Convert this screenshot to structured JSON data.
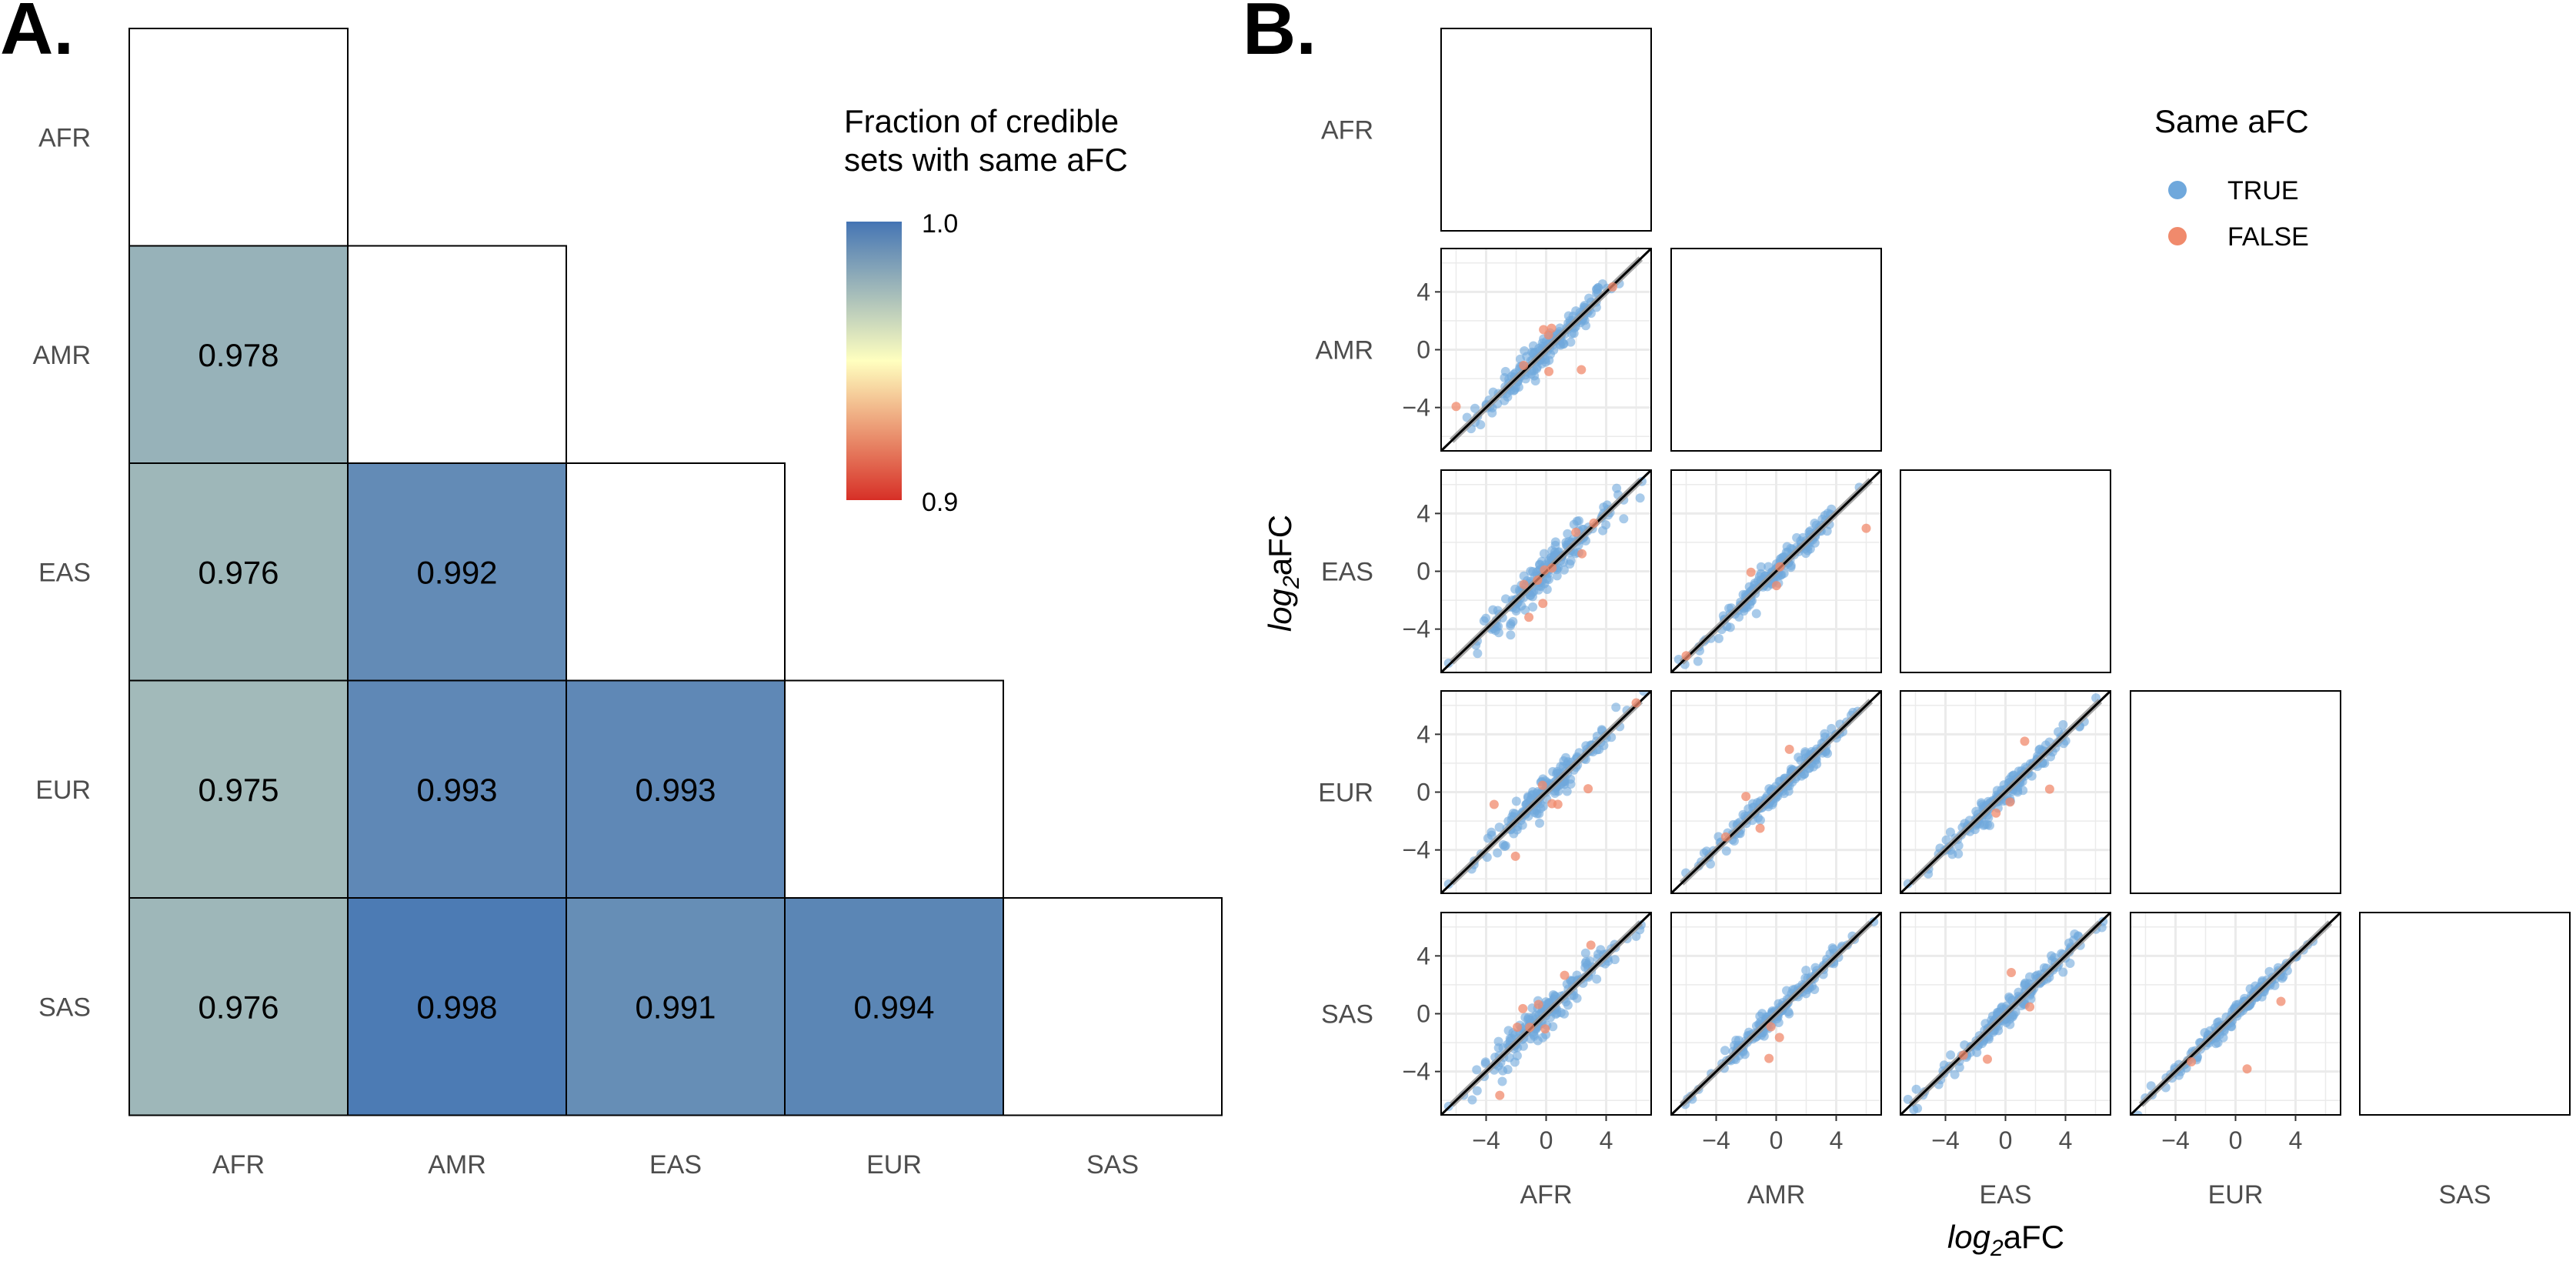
{
  "panelA": {
    "label": "A.",
    "legend_title_line1": "Fraction of credible",
    "legend_title_line2": "sets with same aFC",
    "legend_max": "1.0",
    "legend_min": "0.9",
    "scale": {
      "min": 0.9,
      "max": 1.0,
      "low_color": "#d73027",
      "mid_color": "#ffffbf",
      "high_color": "#4575b4"
    }
  },
  "panelB": {
    "label": "B.",
    "legend_title": "Same aFC",
    "legend_items": [
      {
        "label": "TRUE",
        "color": "#6fa8dc"
      },
      {
        "label": "FALSE",
        "color": "#f08a6c"
      }
    ],
    "xlabel_main": "log",
    "xlabel_sub": "2",
    "xlabel_suffix": "aFC",
    "ylabel_main": "log",
    "ylabel_sub": "2",
    "ylabel_suffix": "aFC",
    "ticks": [
      "−4",
      "0",
      "4"
    ]
  },
  "chart_data": [
    {
      "type": "heatmap",
      "title": "",
      "x_categories": [
        "AFR",
        "AMR",
        "EAS",
        "EUR",
        "SAS"
      ],
      "y_categories": [
        "AFR",
        "AMR",
        "EAS",
        "EUR",
        "SAS"
      ],
      "cells": [
        {
          "row": "AMR",
          "col": "AFR",
          "value": 0.978
        },
        {
          "row": "EAS",
          "col": "AFR",
          "value": 0.976
        },
        {
          "row": "EAS",
          "col": "AMR",
          "value": 0.992
        },
        {
          "row": "EUR",
          "col": "AFR",
          "value": 0.975
        },
        {
          "row": "EUR",
          "col": "AMR",
          "value": 0.993
        },
        {
          "row": "EUR",
          "col": "EAS",
          "value": 0.993
        },
        {
          "row": "SAS",
          "col": "AFR",
          "value": 0.976
        },
        {
          "row": "SAS",
          "col": "AMR",
          "value": 0.998
        },
        {
          "row": "SAS",
          "col": "EAS",
          "value": 0.991
        },
        {
          "row": "SAS",
          "col": "EUR",
          "value": 0.994
        }
      ],
      "color_range": [
        0.9,
        1.0
      ]
    },
    {
      "type": "scatter",
      "title": "",
      "facet_rows": [
        "AFR",
        "AMR",
        "EAS",
        "EUR",
        "SAS"
      ],
      "facet_cols": [
        "AFR",
        "AMR",
        "EAS",
        "EUR",
        "SAS"
      ],
      "xlim": [
        -7,
        7
      ],
      "ylim": [
        -7,
        7
      ],
      "xticks": [
        -4,
        0,
        4
      ],
      "yticks": [
        -4,
        0,
        4
      ],
      "reference_line": "y = x",
      "legend": "top-right",
      "series": [
        {
          "name": "TRUE"
        },
        {
          "name": "FALSE"
        }
      ],
      "facets": [
        {
          "row": "AMR",
          "col": "AFR",
          "true_n": 170,
          "false_n": 8,
          "noise": 0.55
        },
        {
          "row": "EAS",
          "col": "AFR",
          "true_n": 170,
          "false_n": 9,
          "noise": 0.6
        },
        {
          "row": "EAS",
          "col": "AMR",
          "true_n": 170,
          "false_n": 5,
          "noise": 0.4
        },
        {
          "row": "EUR",
          "col": "AFR",
          "true_n": 170,
          "false_n": 9,
          "noise": 0.6
        },
        {
          "row": "EUR",
          "col": "AMR",
          "true_n": 170,
          "false_n": 4,
          "noise": 0.4
        },
        {
          "row": "EUR",
          "col": "EAS",
          "true_n": 170,
          "false_n": 4,
          "noise": 0.4
        },
        {
          "row": "SAS",
          "col": "AFR",
          "true_n": 170,
          "false_n": 8,
          "noise": 0.6
        },
        {
          "row": "SAS",
          "col": "AMR",
          "true_n": 170,
          "false_n": 3,
          "noise": 0.35
        },
        {
          "row": "SAS",
          "col": "EAS",
          "true_n": 170,
          "false_n": 4,
          "noise": 0.45
        },
        {
          "row": "SAS",
          "col": "EUR",
          "true_n": 170,
          "false_n": 3,
          "noise": 0.35
        }
      ]
    }
  ]
}
